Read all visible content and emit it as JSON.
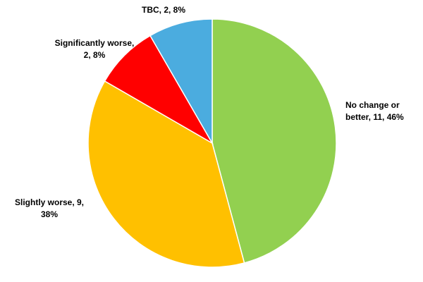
{
  "chart_data": {
    "type": "pie",
    "values": [
      11,
      9,
      2,
      2
    ],
    "value_labels": [
      [
        "No change or",
        "better, 11, 46%"
      ],
      [
        "Slightly worse, 9,",
        "38%"
      ],
      [
        "Significantly worse,",
        "2, 8%"
      ],
      [
        "TBC, 2, 8%"
      ]
    ],
    "colors": [
      "#92d050",
      "#ffc000",
      "#ff0000",
      "#4bacdf"
    ],
    "start_angle": 90,
    "direction": "clockwise"
  }
}
